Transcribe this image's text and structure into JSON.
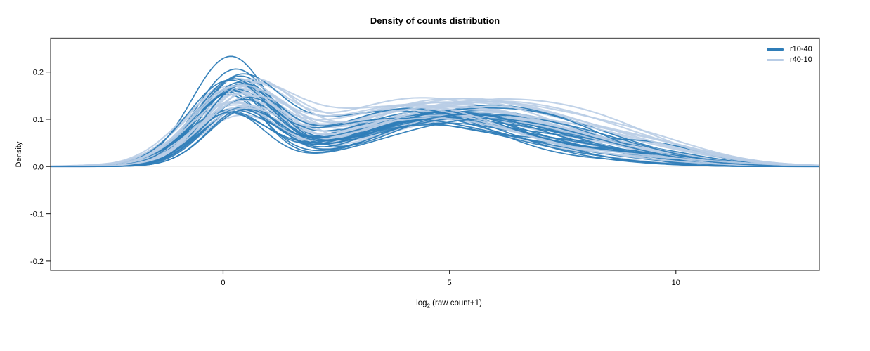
{
  "figure": {
    "title": "Density of counts distribution",
    "y_axis": {
      "label": "Density"
    },
    "x_axis": {
      "label_pre": "log",
      "label_sub": "2",
      "label_post": " (raw count+1)"
    }
  },
  "chart_data": {
    "type": "line",
    "subtype": "kernel-density-curves",
    "title": "Density of counts distribution",
    "xlabel": "log2 (raw count+1)",
    "ylabel": "Density",
    "xlim": [
      -3.81,
      13.17
    ],
    "ylim": [
      -0.2195,
      0.2715
    ],
    "x_ticks": [
      0,
      5,
      10
    ],
    "y_ticks": [
      -0.2,
      -0.1,
      0,
      0.1,
      0.2
    ],
    "grid": false,
    "zero_line_color": "#e8e8e8",
    "box_color": "#5b5b5b",
    "tick_color": "#333333",
    "legend_position": "top-right-inside",
    "random_seed": 11,
    "series_groups": [
      {
        "name": "r10-40",
        "color": "#2f7db8",
        "line_width": 1.7,
        "opacity": 0.95,
        "n_curves": 27,
        "peak_overrides": [
          0.228,
          0.196,
          0.182
        ],
        "model": {
          "a1": [
            0.105,
            0.175
          ],
          "m1": [
            0.05,
            0.55
          ],
          "s1": [
            0.75,
            0.95
          ],
          "a2": [
            0.085,
            0.135
          ],
          "m2": [
            3.7,
            5.6
          ],
          "s2": [
            1.7,
            2.4
          ],
          "a3": [
            0.004,
            0.038
          ],
          "m3": [
            7.3,
            9.6
          ],
          "s3": [
            1.1,
            1.9
          ]
        }
      },
      {
        "name": "r40-10",
        "color": "#b9cde6",
        "line_width": 2.1,
        "opacity": 0.9,
        "n_curves": 27,
        "peak_overrides": [
          0.168
        ],
        "model": {
          "a1": [
            0.092,
            0.158
          ],
          "m1": [
            0.1,
            0.65
          ],
          "s1": [
            0.8,
            1.05
          ],
          "a2": [
            0.095,
            0.148
          ],
          "m2": [
            3.9,
            5.9
          ],
          "s2": [
            1.9,
            2.6
          ],
          "a3": [
            0.004,
            0.034
          ],
          "m3": [
            7.4,
            9.8
          ],
          "s3": [
            1.2,
            2.0
          ]
        }
      }
    ],
    "summary": {
      "description": "Two groups of ~27 per-sample kernel density curves of log2(raw count+1). Bimodal shape: sharp peak near x=0.3 with density 0.10-0.235 (tallest curves are dark r10-40), shallow dip near x=2 (density 0.07-0.12), broad mound near x=4-6 (density 0.09-0.15), tail decaying to ~0 by x=10-13. All curves ~0 at left edge x=-3.8.",
      "peak1_x": 0.3,
      "peak1_density_range": [
        0.1,
        0.235
      ],
      "dip_x": 2.0,
      "dip_density_range": [
        0.07,
        0.12
      ],
      "peak2_x_range": [
        3.7,
        5.9
      ],
      "peak2_density_range": [
        0.09,
        0.15
      ],
      "tail_zero_x_range": [
        10,
        13
      ]
    }
  }
}
